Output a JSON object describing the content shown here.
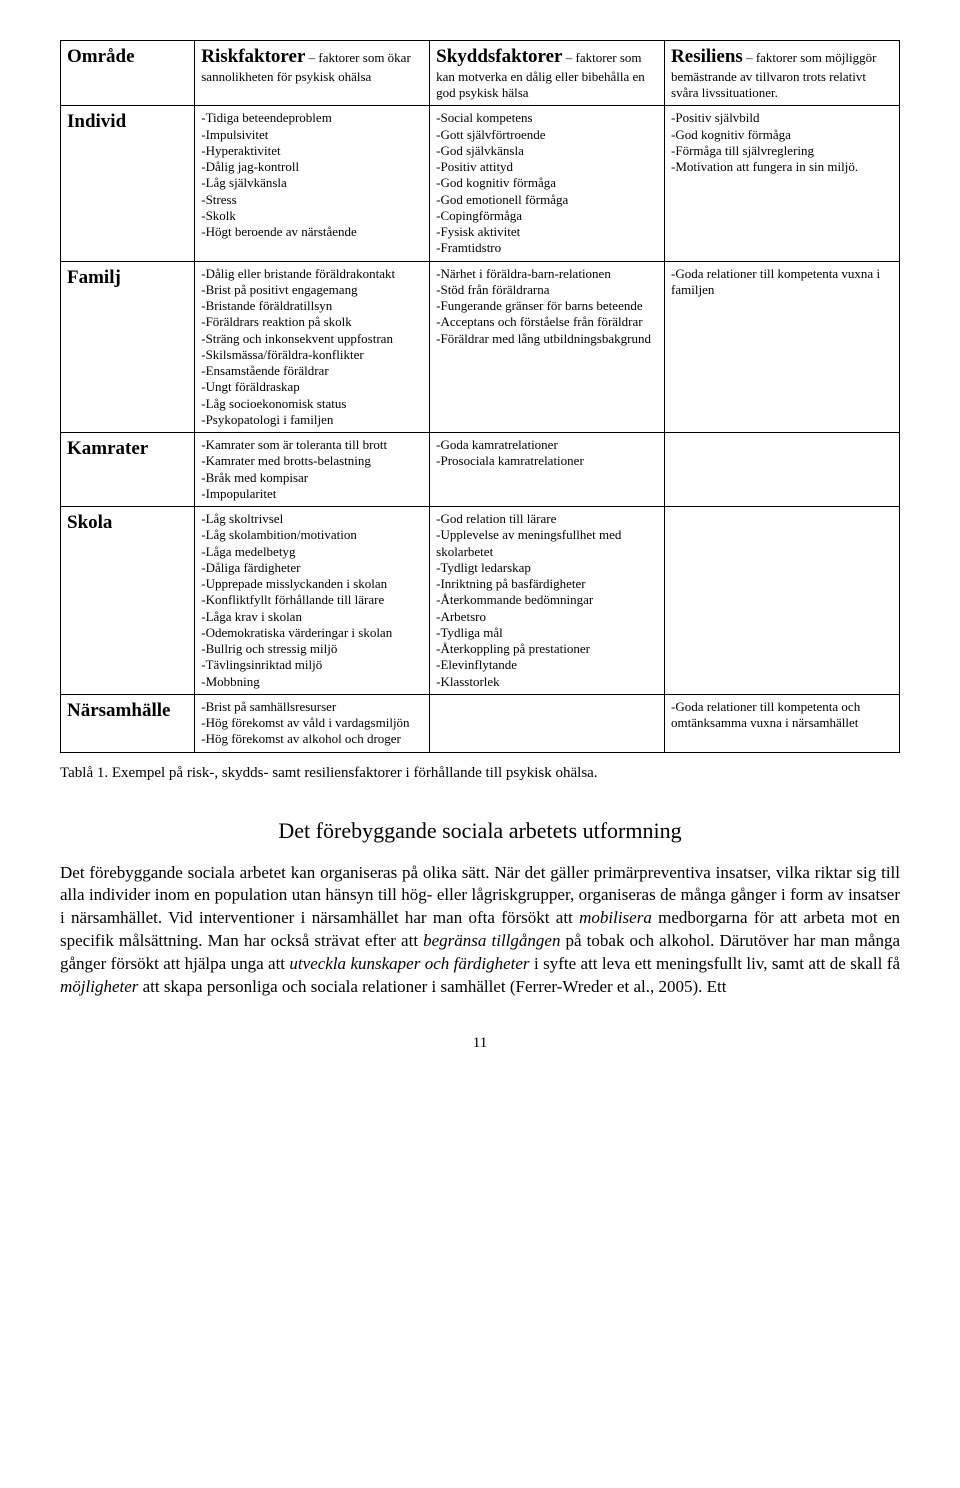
{
  "table": {
    "headers": {
      "area": "Område",
      "risk_strong": "Riskfaktorer",
      "risk_sub": " – faktorer som ökar sannolikheten för psykisk ohälsa",
      "skydd_strong": "Skyddsfaktorer",
      "skydd_sub": " – faktorer som kan motverka en dålig eller bibehålla en god psykisk hälsa",
      "res_strong": "Resiliens",
      "res_sub": " – faktorer som möjliggör bemästrande av tillvaron trots relativt svåra livssituationer."
    },
    "rows": [
      {
        "area": "Individ",
        "risk": "-Tidiga beteendeproblem\n-Impulsivitet\n-Hyperaktivitet\n-Dålig jag-kontroll\n-Låg självkänsla\n-Stress\n-Skolk\n-Högt beroende av närstående",
        "skydd": "-Social kompetens\n-Gott självförtroende\n-God självkänsla\n-Positiv attityd\n-God kognitiv förmåga\n-God emotionell förmåga\n-Copingförmåga\n-Fysisk aktivitet\n-Framtidstro",
        "res": "-Positiv självbild\n-God kognitiv förmåga\n-Förmåga till självreglering\n-Motivation att fungera in sin miljö."
      },
      {
        "area": "Familj",
        "risk": "-Dålig eller bristande föräldrakontakt\n-Brist på positivt engagemang\n-Bristande föräldratillsyn\n-Föräldrars reaktion på skolk\n-Sträng och inkonsekvent uppfostran\n-Skilsmässa/föräldra-konflikter\n-Ensamstående föräldrar\n-Ungt föräldraskap\n-Låg socioekonomisk status\n-Psykopatologi i familjen",
        "skydd": "-Närhet i föräldra-barn-relationen\n-Stöd från föräldrarna\n-Fungerande gränser för barns beteende\n-Acceptans och förståelse från föräldrar\n-Föräldrar med lång utbildningsbakgrund",
        "res": "-Goda relationer till kompetenta vuxna i familjen"
      },
      {
        "area": "Kamrater",
        "risk": "-Kamrater som är toleranta till brott\n-Kamrater med brotts-belastning\n-Bråk med kompisar\n-Impopularitet",
        "skydd": "-Goda kamratrelationer\n-Prosociala kamratrelationer",
        "res": ""
      },
      {
        "area": "Skola",
        "risk": "-Låg skoltrivsel\n-Låg skolambition/motivation\n-Låga medelbetyg\n-Dåliga färdigheter\n-Upprepade misslyckanden i skolan\n-Konfliktfyllt förhållande till lärare\n-Låga krav i skolan\n-Odemokratiska värderingar i skolan\n-Bullrig och stressig miljö\n-Tävlingsinriktad miljö\n-Mobbning",
        "skydd": "-God relation till lärare\n-Upplevelse av meningsfullhet med skolarbetet\n-Tydligt ledarskap\n-Inriktning på basfärdigheter\n-Återkommande bedömningar\n-Arbetsro\n-Tydliga mål\n-Återkoppling på prestationer\n-Elevinflytande\n-Klasstorlek",
        "res": ""
      },
      {
        "area": "Närsamhälle",
        "risk": "-Brist på samhällsresurser\n-Hög förekomst av våld i vardagsmiljön\n-Hög förekomst av alkohol och droger",
        "skydd": "",
        "res": "-Goda relationer till kompetenta och omtänksamma vuxna i närsamhället"
      }
    ]
  },
  "caption": "Tablå 1. Exempel på risk-, skydds- samt resiliensfaktorer i förhållande till psykisk ohälsa.",
  "section_title": "Det förebyggande sociala arbetets utformning",
  "body_lead": "Det förebyggande sociala arbetet kan organiseras på olika sätt. När det gäller primärpreventiva insatser, vilka riktar sig till alla individer inom en population utan hänsyn till hög- eller lågriskgrupper, organiseras de många gånger i form av insatser i närsamhället. Vid interventioner i närsamhället har man ofta försökt att ",
  "body_em1": "mobilisera",
  "body_mid1": " medborgarna för att arbeta mot en specifik målsättning. Man har också strävat efter att ",
  "body_em2": "begränsa tillgången",
  "body_mid2": " på tobak och alkohol. Därutöver har man många gånger försökt att hjälpa unga att ",
  "body_em3": "utveckla kunskaper och färdigheter",
  "body_mid3": " i syfte att leva ett meningsfullt liv, samt att de skall få ",
  "body_em4": "möjligheter",
  "body_tail": " att skapa personliga och sociala relationer i samhället (Ferrer-Wreder et al., 2005). Ett",
  "page_number": "11",
  "colors": {
    "text": "#000000",
    "background": "#ffffff",
    "border": "#000000"
  },
  "fonts": {
    "body_family": "Times New Roman",
    "cell_fontsize": 13,
    "area_fontsize": 19,
    "header_strong_fontsize": 19,
    "caption_fontsize": 15,
    "section_title_fontsize": 22,
    "body_fontsize": 17
  }
}
